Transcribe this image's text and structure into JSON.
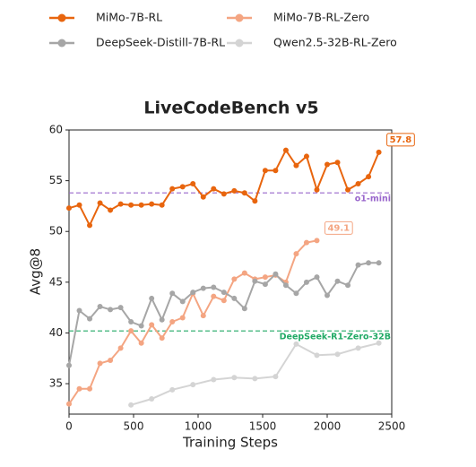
{
  "chart_data": {
    "type": "line",
    "title": "LiveCodeBench v5",
    "xlabel": "Training Steps",
    "ylabel": "Avg@8",
    "xlim": [
      0,
      2500
    ],
    "xticks": [
      0,
      500,
      1000,
      1500,
      2000,
      2500
    ],
    "ylim": [
      32,
      60
    ],
    "yticks": [
      35,
      40,
      45,
      50,
      55,
      60
    ],
    "grid": false,
    "legend": "top",
    "series": [
      {
        "name": "MiMo-7B-RL",
        "color": "#e8650e",
        "annotate_last": true,
        "x": [
          0,
          80,
          160,
          240,
          320,
          400,
          480,
          560,
          640,
          720,
          800,
          880,
          960,
          1040,
          1120,
          1200,
          1280,
          1360,
          1440,
          1520,
          1600,
          1680,
          1760,
          1840,
          1920,
          2000,
          2080,
          2160,
          2240,
          2320,
          2400
        ],
        "values": [
          52.3,
          52.6,
          50.6,
          52.8,
          52.1,
          52.7,
          52.6,
          52.6,
          52.7,
          52.6,
          54.2,
          54.4,
          54.7,
          53.4,
          54.2,
          53.7,
          54.0,
          53.8,
          53.0,
          56.0,
          56.0,
          58.0,
          56.5,
          57.4,
          54.1,
          56.6,
          56.8,
          54.1,
          54.7,
          55.4,
          57.8
        ]
      },
      {
        "name": "MiMo-7B-RL-Zero",
        "color": "#f4a582",
        "annotate_last": true,
        "x": [
          0,
          80,
          160,
          240,
          320,
          400,
          480,
          560,
          640,
          720,
          800,
          880,
          960,
          1040,
          1120,
          1200,
          1280,
          1360,
          1440,
          1520,
          1600,
          1680,
          1760,
          1840,
          1920
        ],
        "values": [
          33.0,
          34.5,
          34.5,
          37.0,
          37.3,
          38.5,
          40.2,
          39.0,
          40.8,
          39.5,
          41.1,
          41.5,
          43.9,
          41.7,
          43.6,
          43.2,
          45.3,
          45.9,
          45.3,
          45.5,
          45.7,
          45.0,
          47.8,
          48.9,
          49.1
        ]
      },
      {
        "name": "DeepSeek-Distill-7B-RL",
        "color": "#a6a6a6",
        "annotate_last": false,
        "x": [
          0,
          80,
          160,
          240,
          320,
          400,
          480,
          560,
          640,
          720,
          800,
          880,
          960,
          1040,
          1120,
          1200,
          1280,
          1360,
          1440,
          1520,
          1600,
          1680,
          1760,
          1840,
          1920,
          2000,
          2080,
          2160,
          2240,
          2320,
          2400
        ],
        "values": [
          36.8,
          42.2,
          41.4,
          42.6,
          42.3,
          42.5,
          41.1,
          40.7,
          43.4,
          41.3,
          43.9,
          43.1,
          44.0,
          44.4,
          44.5,
          44.0,
          43.4,
          42.4,
          45.1,
          44.8,
          45.8,
          44.7,
          43.9,
          45.0,
          45.5,
          43.7,
          45.1,
          44.7,
          46.7,
          46.9,
          46.9
        ]
      },
      {
        "name": "Qwen2.5-32B-RL-Zero",
        "color": "#d4d4d4",
        "annotate_last": false,
        "x": [
          480,
          640,
          800,
          960,
          1120,
          1280,
          1440,
          1600,
          1760,
          1920,
          2080,
          2240,
          2400
        ],
        "values": [
          32.9,
          33.5,
          34.4,
          34.9,
          35.4,
          35.6,
          35.5,
          35.7,
          38.9,
          37.8,
          37.9,
          38.5,
          39.0
        ]
      }
    ],
    "reference_lines": [
      {
        "label": "o1-mini",
        "value": 53.8,
        "color": "#9966cc"
      },
      {
        "label": "DeepSeek-R1-Zero-32B",
        "value": 40.2,
        "color": "#22aa66"
      }
    ]
  }
}
